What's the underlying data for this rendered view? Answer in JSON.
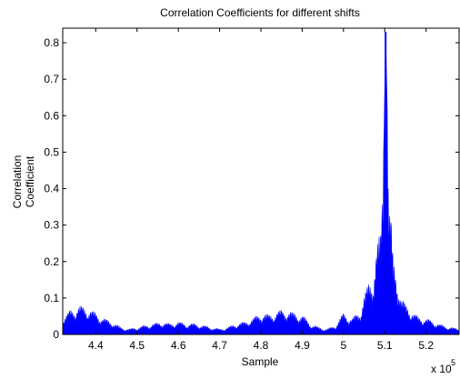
{
  "chart_data": {
    "type": "area",
    "title": "Correlation Coefficients for different shifts",
    "xlabel": "Sample",
    "ylabel": [
      "Correlation",
      "Coefficient"
    ],
    "x_exponent_label": "x 10",
    "x_exponent_power": "5",
    "xlim": [
      432000,
      528000
    ],
    "ylim": [
      0,
      0.84
    ],
    "x_ticks": [
      440000,
      450000,
      460000,
      470000,
      480000,
      490000,
      500000,
      510000,
      520000
    ],
    "x_tick_labels": [
      "4.4",
      "4.5",
      "4.6",
      "4.7",
      "4.8",
      "4.9",
      "5",
      "5.1",
      "5.2"
    ],
    "y_ticks": [
      0,
      0.1,
      0.2,
      0.3,
      0.4,
      0.5,
      0.6,
      0.7,
      0.8
    ],
    "y_tick_labels": [
      "0",
      "0.1",
      "0.2",
      "0.3",
      "0.4",
      "0.5",
      "0.6",
      "0.7",
      "0.8"
    ],
    "grid": false,
    "legend": "none",
    "color": "#0000ff",
    "envelope": {
      "x": [
        432000,
        434000,
        436000,
        438000,
        440000,
        442000,
        444000,
        446000,
        448000,
        450000,
        452000,
        454000,
        456000,
        458000,
        460000,
        462000,
        464000,
        466000,
        468000,
        470000,
        472000,
        474000,
        476000,
        478000,
        480000,
        482000,
        484000,
        486000,
        488000,
        490000,
        492000,
        494000,
        496000,
        498000,
        500000,
        502000,
        504000,
        505000,
        506000,
        507000,
        508000,
        509000,
        509800,
        510200,
        510600,
        511000,
        511500,
        512000,
        513000,
        514000,
        515000,
        516000,
        517000,
        518000,
        520000,
        522000,
        524000,
        526000,
        528000
      ],
      "y": [
        0.045,
        0.07,
        0.08,
        0.075,
        0.06,
        0.045,
        0.035,
        0.02,
        0.015,
        0.02,
        0.025,
        0.03,
        0.035,
        0.03,
        0.035,
        0.03,
        0.03,
        0.025,
        0.02,
        0.015,
        0.02,
        0.03,
        0.035,
        0.045,
        0.06,
        0.055,
        0.065,
        0.07,
        0.06,
        0.055,
        0.03,
        0.02,
        0.015,
        0.025,
        0.06,
        0.045,
        0.065,
        0.11,
        0.14,
        0.16,
        0.25,
        0.28,
        0.53,
        0.83,
        0.62,
        0.36,
        0.33,
        0.21,
        0.17,
        0.1,
        0.085,
        0.075,
        0.06,
        0.05,
        0.045,
        0.035,
        0.025,
        0.02,
        0.015
      ]
    },
    "peak": {
      "x": 510200,
      "y": 0.83
    }
  }
}
